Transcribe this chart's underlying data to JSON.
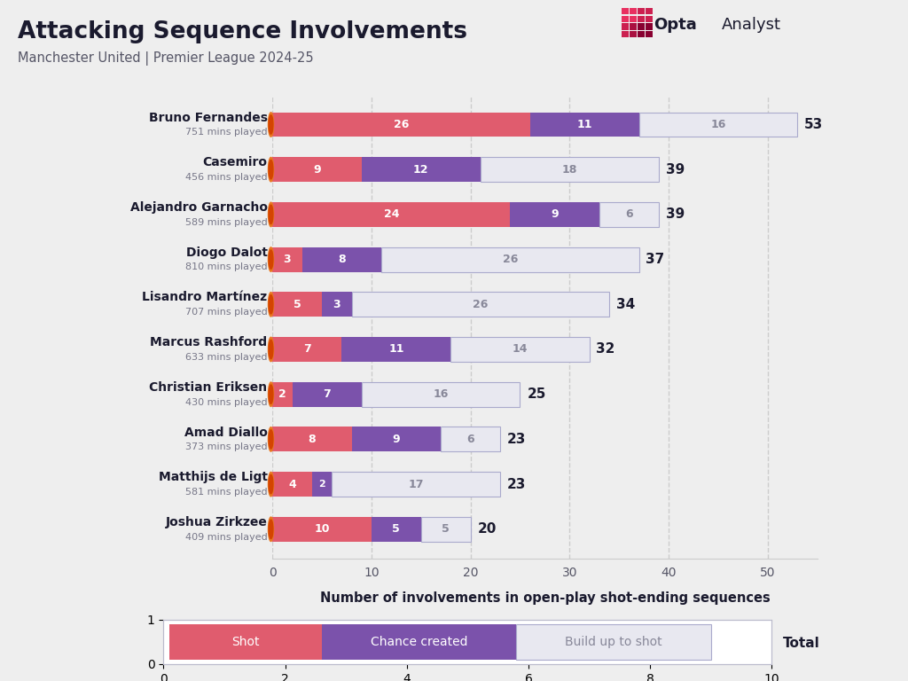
{
  "title": "Attacking Sequence Involvements",
  "subtitle": "Manchester United | Premier League 2024-25",
  "xlabel": "Number of involvements in open-play shot-ending sequences",
  "bg_color": "#eeeeee",
  "shot_color": "#e05c6e",
  "chance_color": "#7b52ab",
  "buildup_color": "#e8e8f0",
  "buildup_edge_color": "#aaaacc",
  "players": [
    {
      "name": "Bruno Fernandes",
      "mins": "751 mins played",
      "shot": 26,
      "chance": 11,
      "buildup": 16,
      "total": 53
    },
    {
      "name": "Casemiro",
      "mins": "456 mins played",
      "shot": 9,
      "chance": 12,
      "buildup": 18,
      "total": 39
    },
    {
      "name": "Alejandro Garnacho",
      "mins": "589 mins played",
      "shot": 24,
      "chance": 9,
      "buildup": 6,
      "total": 39
    },
    {
      "name": "Diogo Dalot",
      "mins": "810 mins played",
      "shot": 3,
      "chance": 8,
      "buildup": 26,
      "total": 37
    },
    {
      "name": "Lisandro Martínez",
      "mins": "707 mins played",
      "shot": 5,
      "chance": 3,
      "buildup": 26,
      "total": 34
    },
    {
      "name": "Marcus Rashford",
      "mins": "633 mins played",
      "shot": 7,
      "chance": 11,
      "buildup": 14,
      "total": 32
    },
    {
      "name": "Christian Eriksen",
      "mins": "430 mins played",
      "shot": 2,
      "chance": 7,
      "buildup": 16,
      "total": 25
    },
    {
      "name": "Amad Diallo",
      "mins": "373 mins played",
      "shot": 8,
      "chance": 9,
      "buildup": 6,
      "total": 23
    },
    {
      "name": "Matthijs de Ligt",
      "mins": "581 mins played",
      "shot": 4,
      "chance": 2,
      "buildup": 17,
      "total": 23
    },
    {
      "name": "Joshua Zirkzee",
      "mins": "409 mins played",
      "shot": 10,
      "chance": 5,
      "buildup": 5,
      "total": 20
    }
  ],
  "xlim": [
    0,
    55
  ],
  "xticks": [
    0,
    10,
    20,
    30,
    40,
    50
  ],
  "bar_height": 0.55,
  "title_color": "#1a1a2e",
  "subtitle_color": "#555566",
  "name_color": "#1a1a2e",
  "mins_color": "#777788",
  "total_color": "#1a1a2e",
  "grid_color": "#cccccc",
  "tick_color": "#555566",
  "opta_bold_color": "#1a1a2e",
  "opta_regular_color": "#1a1a2e"
}
